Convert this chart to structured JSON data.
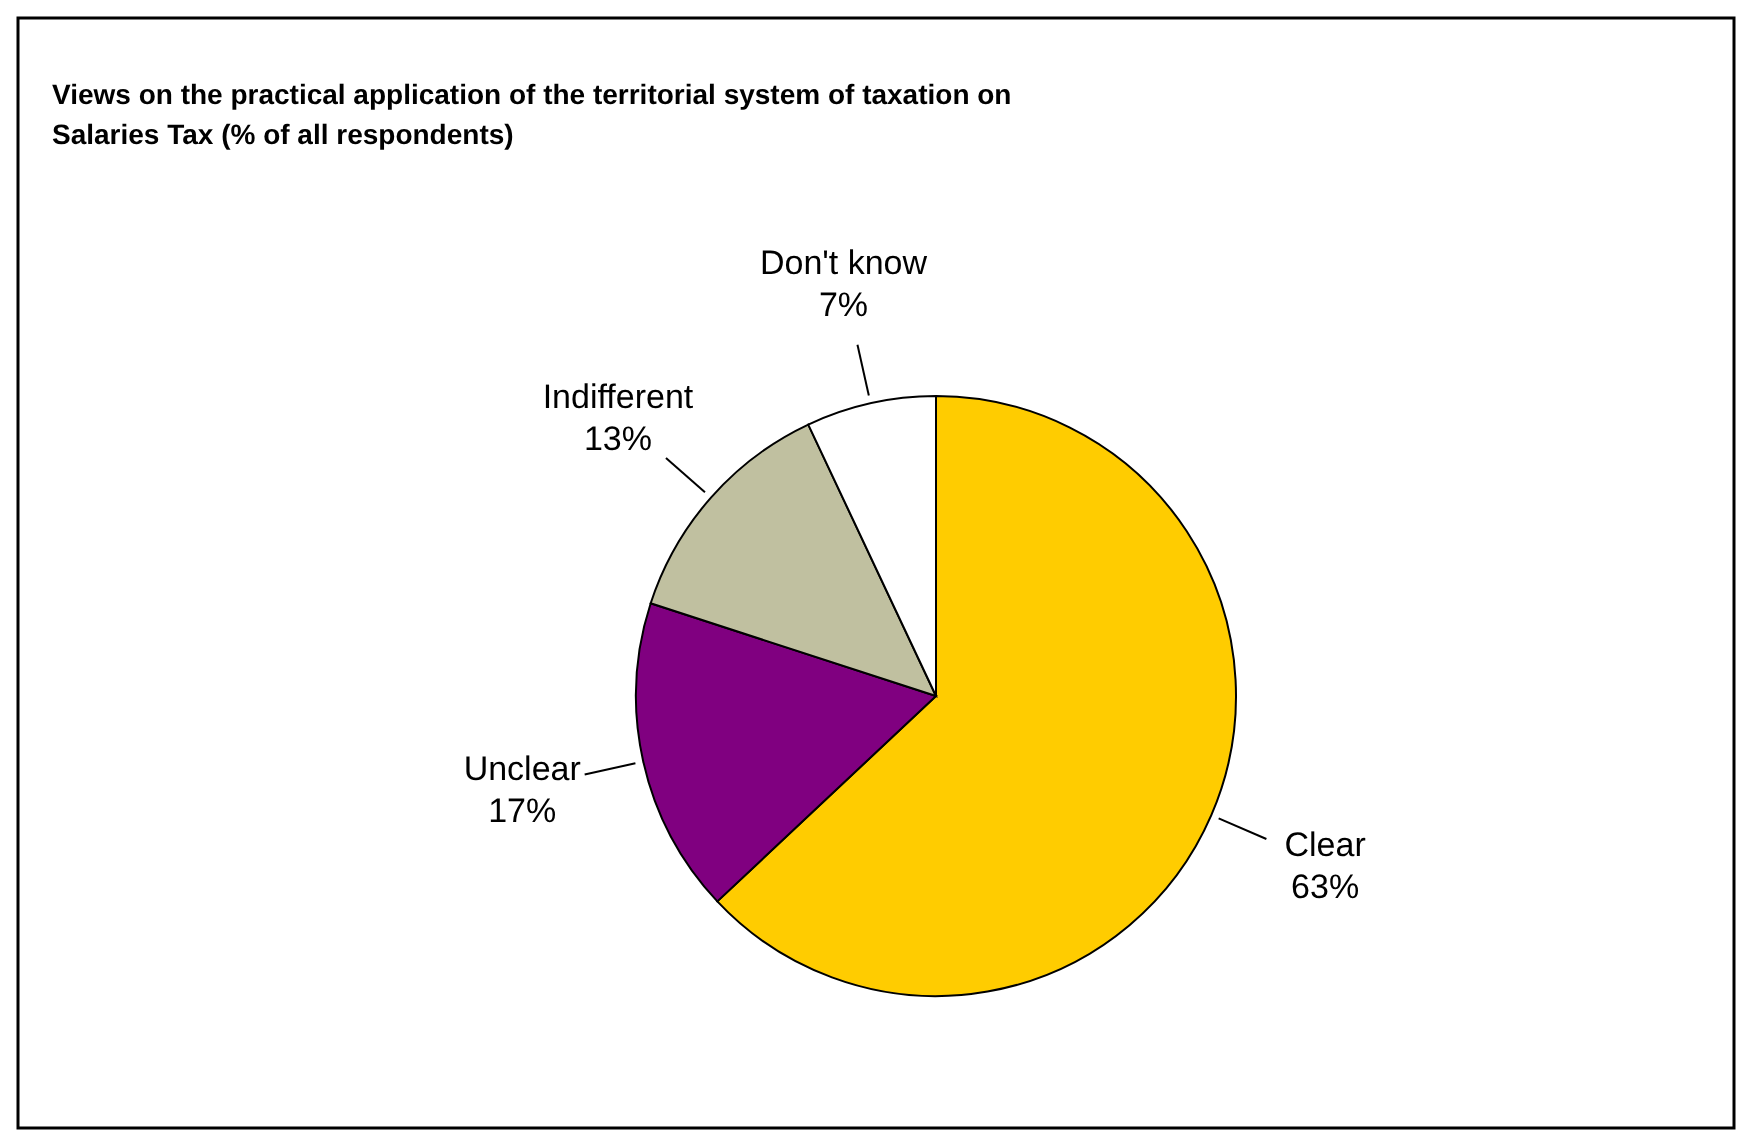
{
  "chart_data": {
    "type": "pie",
    "title": "Views on the practical application of the territorial system of taxation on Salaries Tax (% of all respondents)",
    "categories": [
      "Clear",
      "Unclear",
      "Indifferent",
      "Don't know"
    ],
    "values": [
      63,
      17,
      13,
      7
    ],
    "value_labels": [
      "63%",
      "17%",
      "13%",
      "7%"
    ],
    "colors": [
      "#ffcc00",
      "#800080",
      "#c0c0a0",
      "#ffffff"
    ]
  }
}
